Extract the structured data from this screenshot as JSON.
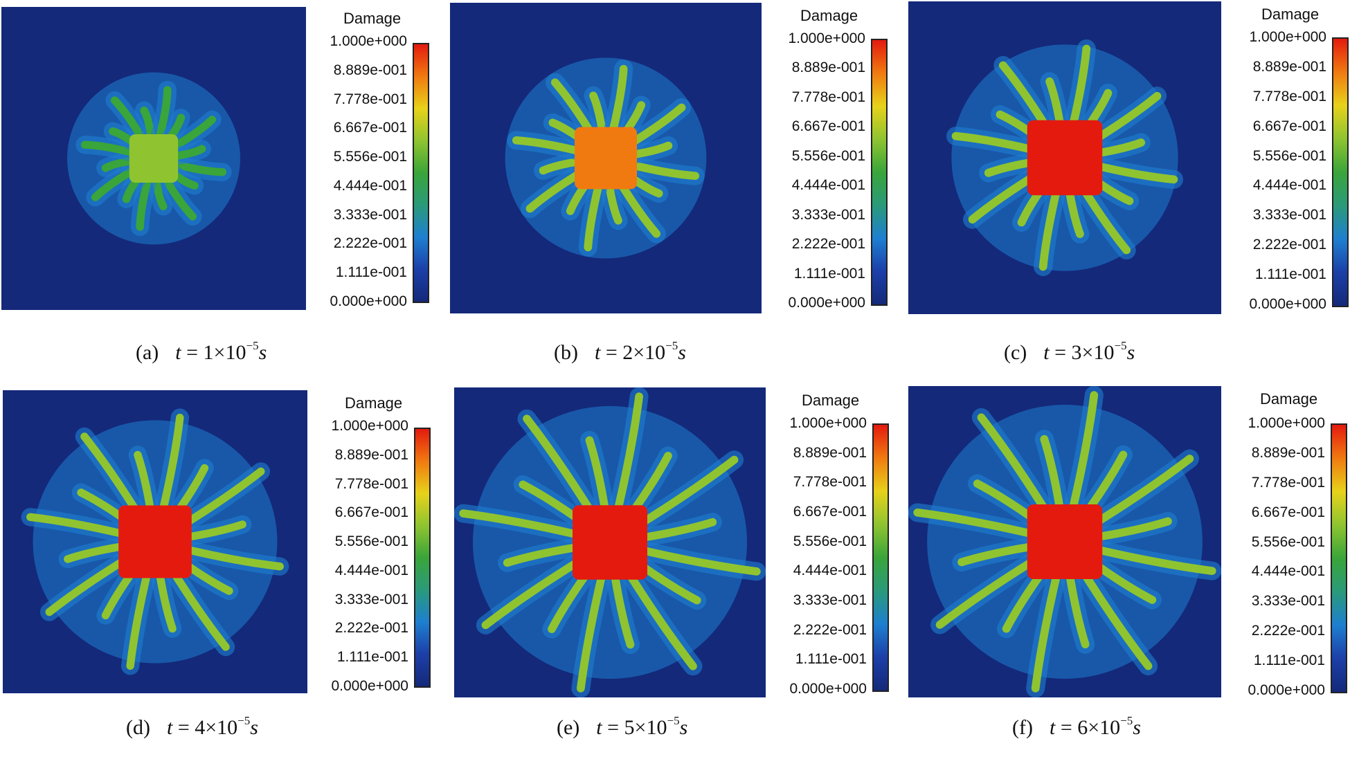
{
  "legend": {
    "title": "Damage",
    "ticks": [
      "1.000e+000",
      "8.889e-001",
      "7.778e-001",
      "6.667e-001",
      "5.556e-001",
      "4.444e-001",
      "3.333e-001",
      "2.222e-001",
      "1.111e-001",
      "0.000e+000"
    ],
    "range": [
      0,
      1
    ],
    "colors": [
      "#e41a0f",
      "#f07a10",
      "#e7d21a",
      "#8fc430",
      "#3aa53a",
      "#2a9a7a",
      "#1e7fd0",
      "#1c3fa8",
      "#14297a"
    ]
  },
  "panels": [
    {
      "label": "(a)",
      "var": "t",
      "eq": " = 1×10",
      "exp": "−5",
      "unit": "s",
      "time": 1,
      "center_damage": 0.6
    },
    {
      "label": "(b)",
      "var": "t",
      "eq": " = 2×10",
      "exp": "−5",
      "unit": "s",
      "time": 2,
      "center_damage": 0.9
    },
    {
      "label": "(c)",
      "var": "t",
      "eq": " = 3×10",
      "exp": "−5",
      "unit": "s",
      "time": 3,
      "center_damage": 1.0
    },
    {
      "label": "(d)",
      "var": "t",
      "eq": " = 4×10",
      "exp": "−5",
      "unit": "s",
      "time": 4,
      "center_damage": 1.0
    },
    {
      "label": "(e)",
      "var": "t",
      "eq": " = 5×10",
      "exp": "−5",
      "unit": "s",
      "time": 5,
      "center_damage": 1.0
    },
    {
      "label": "(f)",
      "var": "t",
      "eq": " = 6×10",
      "exp": "−5",
      "unit": "s",
      "time": 6,
      "center_damage": 1.0
    }
  ]
}
